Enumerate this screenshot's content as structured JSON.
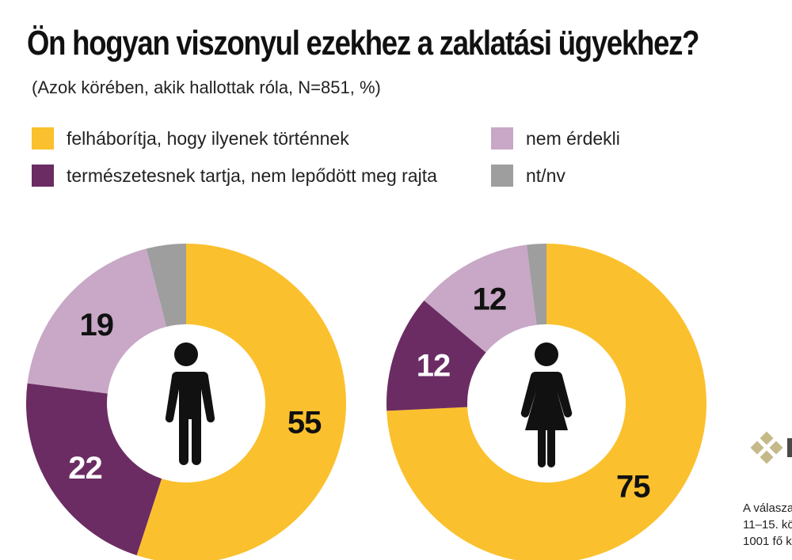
{
  "title": "Ön hogyan viszonyul ezekhez a zaklatási ügyekhez?",
  "subtitle": "(Azok körében, akik hallottak róla, N=851, %)",
  "legend": [
    {
      "label": "felháborítja, hogy ilyenek történnek",
      "color": "#FBC02D"
    },
    {
      "label": "természetesnek tartja, nem lepődött meg rajta",
      "color": "#6B2C63"
    },
    {
      "label": "nem érdekli",
      "color": "#C8A8C6"
    },
    {
      "label": "nt/nv",
      "color": "#9E9E9E"
    }
  ],
  "chart_data": [
    {
      "type": "pie",
      "icon": "male-figure-icon",
      "series": [
        {
          "label": "felháborítja, hogy ilyenek történnek",
          "value": 55,
          "color": "#FBC02D",
          "shown": "55",
          "text_color": "#111111"
        },
        {
          "label": "természetesnek tartja, nem lepődött meg rajta",
          "value": 22,
          "color": "#6B2C63",
          "shown": "22",
          "text_color": "#ffffff"
        },
        {
          "label": "nem érdekli",
          "value": 19,
          "color": "#C8A8C6",
          "shown": "19",
          "text_color": "#111111"
        },
        {
          "label": "nt/nv",
          "value": 4,
          "color": "#9E9E9E",
          "shown": "",
          "text_color": "#111111"
        }
      ]
    },
    {
      "type": "pie",
      "icon": "female-figure-icon",
      "series": [
        {
          "label": "felháborítja, hogy ilyenek történnek",
          "value": 75,
          "color": "#FBC02D",
          "shown": "75",
          "text_color": "#111111"
        },
        {
          "label": "természetesnek tartja, nem lepődött meg rajta",
          "value": 12,
          "color": "#6B2C63",
          "shown": "12",
          "text_color": "#ffffff"
        },
        {
          "label": "nem érdekli",
          "value": 12,
          "color": "#C8A8C6",
          "shown": "12",
          "text_color": "#111111"
        },
        {
          "label": "nt/nv",
          "value": 2,
          "color": "#9E9E9E",
          "shown": "",
          "text_color": "#111111"
        }
      ]
    }
  ],
  "footnote": {
    "line1": "A válaszad",
    "line2": "11–15. kö",
    "line3": "1001 fő k"
  }
}
